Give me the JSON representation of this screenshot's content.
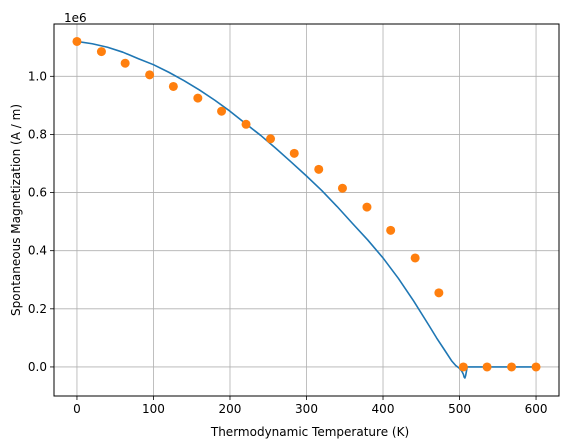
{
  "chart_data": {
    "type": "line",
    "title": "",
    "xlabel": "Thermodynamic Temperature (K)",
    "ylabel": "Spontaneous Magnetization (A / m)",
    "y_multiplier_label": "1e6",
    "xlim": [
      -30,
      630
    ],
    "ylim": [
      -0.1,
      1.18
    ],
    "xticks": [
      0,
      100,
      200,
      300,
      400,
      500,
      600
    ],
    "yticks": [
      0.0,
      0.2,
      0.4,
      0.6,
      0.8,
      1.0
    ],
    "xtick_labels": [
      "0",
      "100",
      "200",
      "300",
      "400",
      "500",
      "600"
    ],
    "ytick_labels": [
      "0.0",
      "0.2",
      "0.4",
      "0.6",
      "0.8",
      "1.0"
    ],
    "grid": true,
    "legend": "none",
    "series": [
      {
        "type": "line",
        "color": "#1f77b4",
        "x": [
          0,
          20,
          40,
          60,
          80,
          100,
          120,
          140,
          160,
          180,
          200,
          220,
          240,
          260,
          280,
          300,
          320,
          340,
          360,
          380,
          400,
          420,
          440,
          460,
          470,
          480,
          490,
          495,
          500,
          503,
          505,
          506,
          507,
          508,
          509,
          510,
          520,
          540,
          560,
          580,
          600
        ],
        "y": [
          1.12,
          1.112,
          1.1,
          1.083,
          1.061,
          1.04,
          1.014,
          0.985,
          0.953,
          0.918,
          0.88,
          0.838,
          0.797,
          0.752,
          0.705,
          0.657,
          0.607,
          0.552,
          0.494,
          0.437,
          0.375,
          0.305,
          0.227,
          0.143,
          0.1,
          0.06,
          0.02,
          0.005,
          -0.005,
          -0.015,
          -0.025,
          -0.035,
          -0.038,
          -0.03,
          -0.015,
          0.0,
          0.0,
          0.0,
          0.0,
          0.0,
          0.0
        ]
      },
      {
        "type": "scatter",
        "color": "#ff7f0e",
        "x": [
          0,
          32,
          63,
          95,
          126,
          158,
          189,
          221,
          253,
          284,
          316,
          347,
          379,
          410,
          442,
          473,
          505,
          536,
          568,
          600
        ],
        "y": [
          1.12,
          1.085,
          1.045,
          1.005,
          0.965,
          0.925,
          0.88,
          0.835,
          0.785,
          0.735,
          0.68,
          0.615,
          0.55,
          0.47,
          0.375,
          0.255,
          0.0,
          0.0,
          0.0,
          0.0
        ]
      }
    ]
  }
}
